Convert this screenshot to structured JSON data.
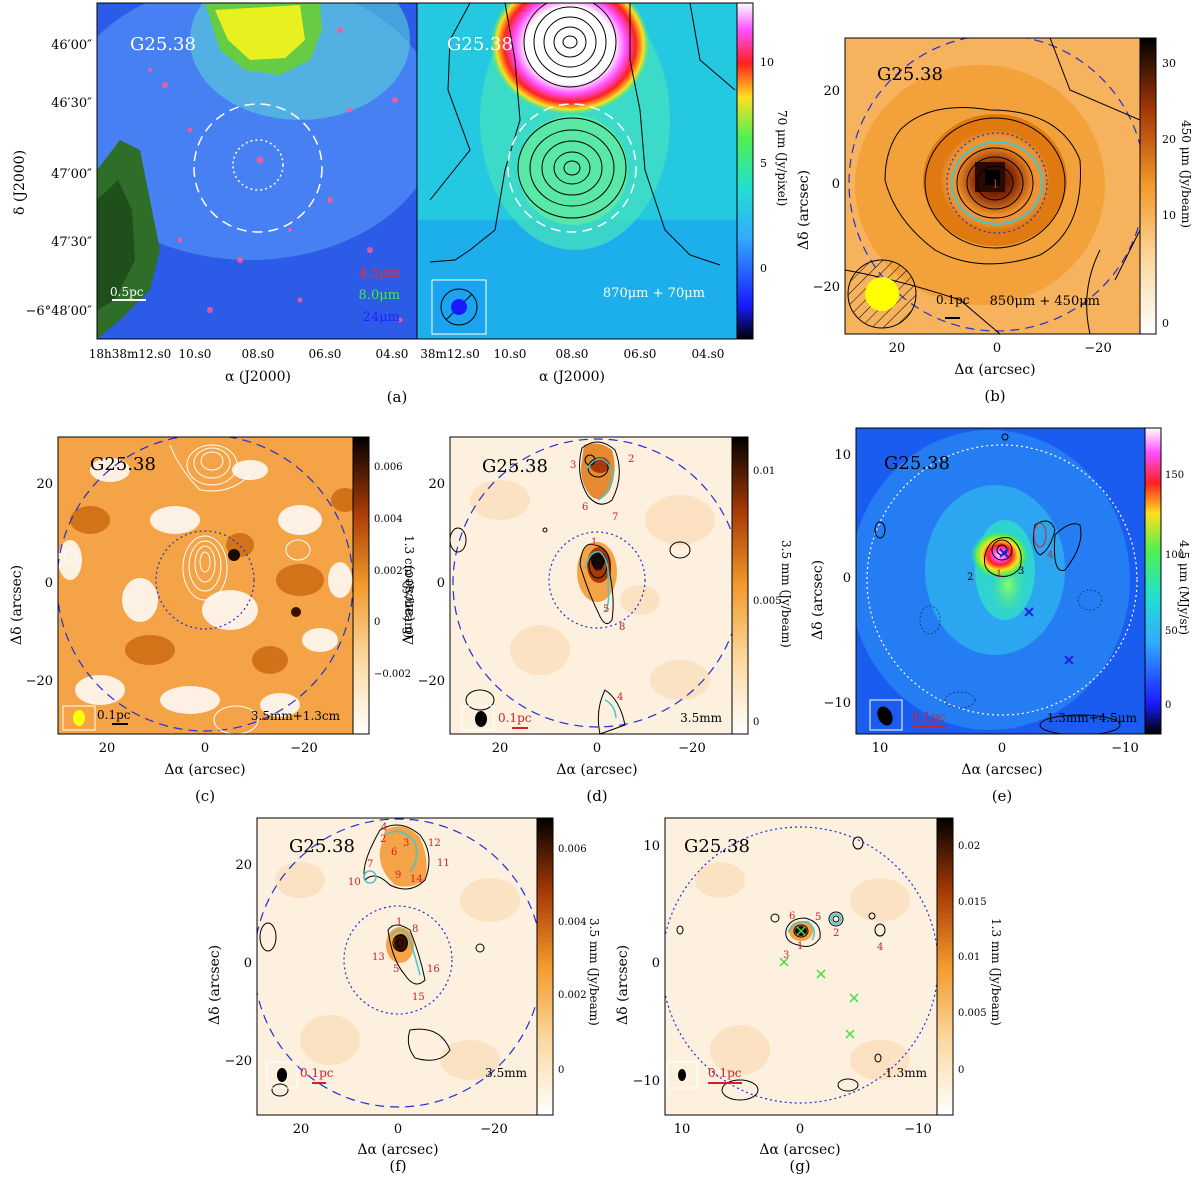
{
  "source_name": "G25.38",
  "colors": {
    "blue_dash": "#1f2fd6",
    "red_label": "#d0202a",
    "cyan": "#44c6cc",
    "yellow_beam": "#ffff00"
  },
  "panel_a": {
    "caption": "(a)",
    "ylabel": "δ (J2000)",
    "xlabel": "α (J2000)",
    "yticks": [
      "46′00″",
      "46′30″",
      "47′00″",
      "47′30″",
      "−6°48′00″"
    ],
    "xticks_left": [
      "18h38m12.s0",
      "10.s0",
      "08.s0",
      "06.s0",
      "04.s0"
    ],
    "xticks_right": [
      "38m12.s0",
      "10.s0",
      "08.s0",
      "06.s0",
      "04.s0"
    ],
    "legend": [
      "4.5μm",
      "8.0μm",
      "24μm"
    ],
    "scalebar": "0.5pc",
    "right_label": "870μm + 70μm",
    "cbar_label": "70 μm (Jy/pixel)",
    "cbar_ticks": [
      "10",
      "5",
      "0"
    ]
  },
  "panel_b": {
    "caption": "(b)",
    "ylabel": "Δδ (arcsec)",
    "xlabel": "Δα (arcsec)",
    "xticks": [
      "20",
      "0",
      "−20"
    ],
    "yticks": [
      "20",
      "0",
      "−20"
    ],
    "scalebar": "0.1pc",
    "label": "850μm + 450μm",
    "peak": "1",
    "cbar_label": "450 μm (Jy/beam)",
    "cbar_ticks": [
      "30",
      "20",
      "10",
      "0"
    ]
  },
  "panel_c": {
    "caption": "(c)",
    "ylabel": "Δδ (arcsec)",
    "xlabel": "Δα (arcsec)",
    "xticks": [
      "20",
      "0",
      "−20"
    ],
    "yticks": [
      "20",
      "0",
      "−20"
    ],
    "scalebar": "0.1pc",
    "label": "3.5mm+1.3cm",
    "cbar_label": "1.3 cm (Jy/beam)",
    "cbar_ticks": [
      "0.006",
      "0.004",
      "0.002",
      "0",
      "−0.002"
    ]
  },
  "panel_d": {
    "caption": "(d)",
    "ylabel": "Δδ (arcsec)",
    "xlabel": "Δα (arcsec)",
    "xticks": [
      "20",
      "0",
      "−20"
    ],
    "yticks": [
      "20",
      "0",
      "−20"
    ],
    "scalebar": "0.1pc",
    "label": "3.5mm",
    "cores": [
      "1",
      "2",
      "3",
      "4",
      "5",
      "6",
      "7",
      "8"
    ],
    "cbar_label": "3.5 mm (Jy/beam)",
    "cbar_ticks": [
      "0.01",
      "0.005",
      "0"
    ]
  },
  "panel_e": {
    "caption": "(e)",
    "ylabel": "Δδ (arcsec)",
    "xlabel": "Δα (arcsec)",
    "xticks": [
      "10",
      "0",
      "−10"
    ],
    "yticks": [
      "10",
      "0",
      "−10"
    ],
    "scalebar": "0.1pc",
    "label": "1.3mm+4.5μm",
    "cores": [
      "1",
      "2",
      "3",
      "4"
    ],
    "cbar_label": "4.5 μm (MJy/sr)",
    "cbar_ticks": [
      "150",
      "100",
      "50",
      "0"
    ]
  },
  "panel_f": {
    "caption": "(f)",
    "ylabel": "Δδ (arcsec)",
    "xlabel": "Δα (arcsec)",
    "xticks": [
      "20",
      "0",
      "−20"
    ],
    "yticks": [
      "20",
      "0",
      "−20"
    ],
    "scalebar": "0.1pc",
    "label": "3.5mm",
    "cores": [
      "1",
      "2",
      "3",
      "4",
      "5",
      "6",
      "7",
      "8",
      "9",
      "10",
      "11",
      "12",
      "13",
      "14",
      "15",
      "16"
    ],
    "cbar_label": "3.5 mm (Jy/beam)",
    "cbar_ticks": [
      "0.006",
      "0.004",
      "0.002",
      "0"
    ]
  },
  "panel_g": {
    "caption": "(g)",
    "ylabel": "Δδ (arcsec)",
    "xlabel": "Δα (arcsec)",
    "xticks": [
      "10",
      "0",
      "−10"
    ],
    "yticks": [
      "10",
      "0",
      "−10"
    ],
    "scalebar": "0.1pc",
    "label": "1.3mm",
    "cores": [
      "1",
      "2",
      "3",
      "4",
      "5",
      "6"
    ],
    "cbar_label": "1.3 mm (Jy/beam)",
    "cbar_ticks": [
      "0.02",
      "0.015",
      "0.01",
      "0.005",
      "0"
    ]
  }
}
